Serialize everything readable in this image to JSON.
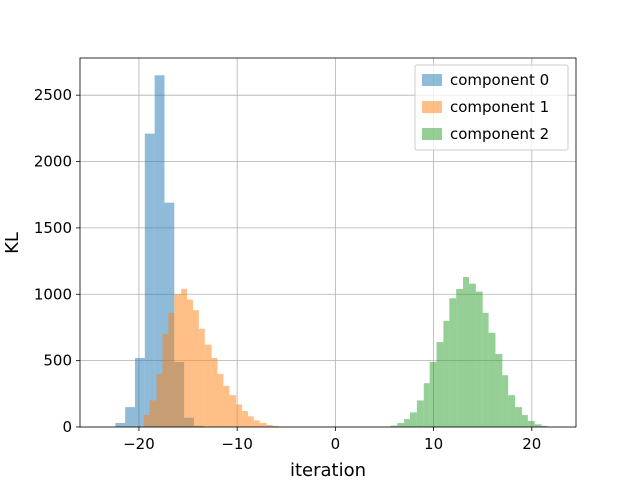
{
  "chart_data": {
    "type": "histogram",
    "xlabel": "iteration",
    "ylabel": "KL",
    "xlim": [
      -26,
      24.5
    ],
    "ylim": [
      0,
      2780
    ],
    "xticks": [
      -20,
      -10,
      0,
      10,
      20
    ],
    "xtick_labels": [
      "−20",
      "−10",
      "0",
      "10",
      "20"
    ],
    "yticks": [
      0,
      500,
      1000,
      1500,
      2000,
      2500
    ],
    "ytick_labels": [
      "0",
      "500",
      "1000",
      "1500",
      "2000",
      "2500"
    ],
    "grid": true,
    "legend_position": "top-right",
    "series": [
      {
        "name": "component 0",
        "color": "#1f77b4",
        "opacity": 0.5,
        "bins": [
          [
            -22.4,
            -21.4,
            30
          ],
          [
            -21.4,
            -20.4,
            150
          ],
          [
            -20.4,
            -19.4,
            520
          ],
          [
            -19.4,
            -18.4,
            2210
          ],
          [
            -18.4,
            -17.4,
            2650
          ],
          [
            -17.4,
            -16.4,
            1690
          ],
          [
            -16.4,
            -15.4,
            490
          ],
          [
            -15.4,
            -14.4,
            70
          ],
          [
            -14.4,
            -13.4,
            8
          ]
        ]
      },
      {
        "name": "component 1",
        "color": "#ff7f0e",
        "opacity": 0.5,
        "bins": [
          [
            -19.5,
            -18.9,
            90
          ],
          [
            -18.9,
            -18.2,
            200
          ],
          [
            -18.2,
            -17.6,
            400
          ],
          [
            -17.6,
            -17.0,
            700
          ],
          [
            -17.0,
            -16.4,
            860
          ],
          [
            -16.4,
            -15.7,
            1000
          ],
          [
            -15.7,
            -15.1,
            1040
          ],
          [
            -15.1,
            -14.5,
            960
          ],
          [
            -14.5,
            -13.9,
            880
          ],
          [
            -13.9,
            -13.3,
            740
          ],
          [
            -13.3,
            -12.6,
            620
          ],
          [
            -12.6,
            -12.0,
            520
          ],
          [
            -12.0,
            -11.4,
            400
          ],
          [
            -11.4,
            -10.8,
            310
          ],
          [
            -10.8,
            -10.1,
            240
          ],
          [
            -10.1,
            -9.5,
            170
          ],
          [
            -9.5,
            -8.9,
            120
          ],
          [
            -8.9,
            -8.3,
            80
          ],
          [
            -8.3,
            -7.7,
            50
          ],
          [
            -7.7,
            -7.0,
            30
          ],
          [
            -7.0,
            -6.4,
            15
          ],
          [
            -6.4,
            -5.8,
            8
          ],
          [
            -5.8,
            -5.2,
            4
          ]
        ]
      },
      {
        "name": "component 2",
        "color": "#2ca02c",
        "opacity": 0.5,
        "bins": [
          [
            5.6,
            6.3,
            10
          ],
          [
            6.3,
            7.0,
            30
          ],
          [
            7.0,
            7.6,
            60
          ],
          [
            7.6,
            8.3,
            110
          ],
          [
            8.3,
            9.0,
            200
          ],
          [
            9.0,
            9.6,
            330
          ],
          [
            9.6,
            10.3,
            490
          ],
          [
            10.3,
            11.0,
            640
          ],
          [
            11.0,
            11.6,
            800
          ],
          [
            11.6,
            12.3,
            970
          ],
          [
            12.3,
            13.0,
            1040
          ],
          [
            13.0,
            13.6,
            1130
          ],
          [
            13.6,
            14.3,
            1080
          ],
          [
            14.3,
            15.0,
            1020
          ],
          [
            15.0,
            15.6,
            860
          ],
          [
            15.6,
            16.3,
            710
          ],
          [
            16.3,
            17.0,
            550
          ],
          [
            17.0,
            17.6,
            390
          ],
          [
            17.6,
            18.3,
            240
          ],
          [
            18.3,
            19.0,
            150
          ],
          [
            19.0,
            19.6,
            90
          ],
          [
            19.6,
            20.3,
            45
          ],
          [
            20.3,
            21.0,
            20
          ],
          [
            21.0,
            21.6,
            8
          ]
        ]
      }
    ]
  }
}
